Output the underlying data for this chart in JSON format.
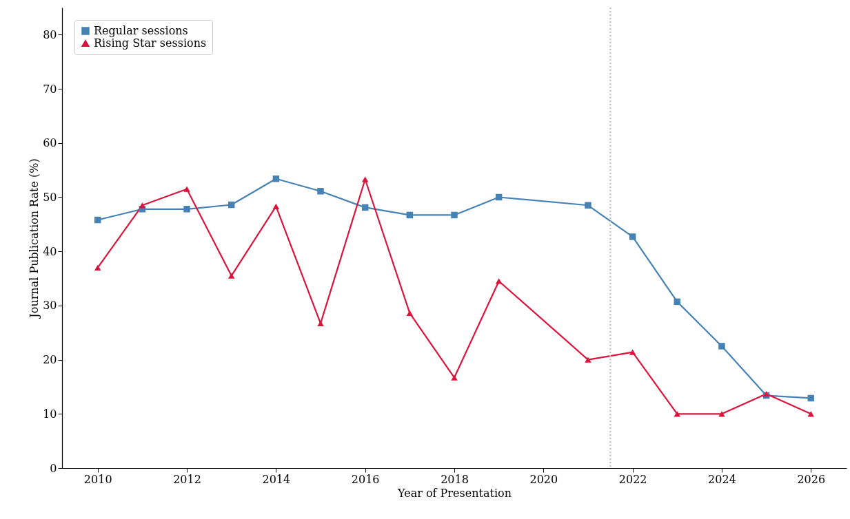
{
  "chart_data": {
    "type": "line",
    "xlabel": "Year of Presentation",
    "ylabel": "Journal Publication Rate (%)",
    "x": [
      2010,
      2011,
      2012,
      2013,
      2014,
      2015,
      2016,
      2017,
      2018,
      2019,
      2021,
      2022,
      2023,
      2024,
      2025,
      2026
    ],
    "series": [
      {
        "name": "Regular sessions",
        "color": "#4682b4",
        "marker": "square",
        "values": [
          45.8,
          47.8,
          47.8,
          48.6,
          53.4,
          51.1,
          48.1,
          46.7,
          46.7,
          50.0,
          48.5,
          42.7,
          30.7,
          22.5,
          13.4,
          12.9
        ]
      },
      {
        "name": "Rising Star sessions",
        "color": "#dc143c",
        "marker": "triangle",
        "values": [
          37.0,
          48.5,
          51.5,
          35.5,
          48.3,
          26.7,
          53.3,
          28.6,
          16.7,
          34.5,
          20.0,
          21.4,
          10.0,
          10.0,
          13.7,
          10.0
        ]
      }
    ],
    "xlim": [
      2009.2,
      2026.8
    ],
    "xticks": [
      2010,
      2012,
      2014,
      2016,
      2018,
      2020,
      2022,
      2024,
      2026
    ],
    "ylim": [
      0,
      85
    ],
    "yticks": [
      0,
      10,
      20,
      30,
      40,
      50,
      60,
      70,
      80
    ],
    "ref_lines": [
      {
        "axis": "x",
        "value": 2021.5,
        "color": "#bbbbbb",
        "line_style": "dotted"
      }
    ],
    "grid": false,
    "legend": "top left",
    "line_style": "solid"
  }
}
